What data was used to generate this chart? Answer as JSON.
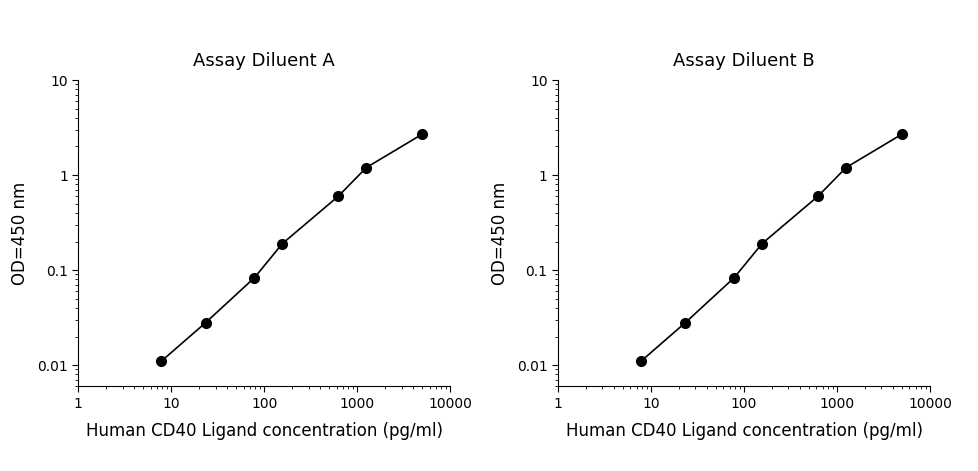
{
  "panel_A": {
    "title": "Assay Diluent A",
    "title_color": "#000000",
    "x": [
      7.8,
      23.4,
      78.1,
      156.3,
      625,
      1250,
      5000
    ],
    "y": [
      0.011,
      0.028,
      0.083,
      0.19,
      0.6,
      1.2,
      2.7
    ],
    "xlabel": "Human CD40 Ligand concentration (pg/ml)",
    "xlabel_color": "#000000",
    "ylabel": "OD=450 nm"
  },
  "panel_B": {
    "title": "Assay Diluent B",
    "title_color": "#000000",
    "x": [
      7.8,
      23.4,
      78.1,
      156.3,
      625,
      1250,
      5000
    ],
    "y": [
      0.011,
      0.028,
      0.083,
      0.19,
      0.6,
      1.2,
      2.7
    ],
    "xlabel": "Human CD40 Ligand concentration (pg/ml)",
    "xlabel_color": "#000000",
    "ylabel": "OD=450 nm"
  },
  "xlim": [
    1,
    10000
  ],
  "ylim": [
    0.006,
    10
  ],
  "xticks": [
    1,
    10,
    100,
    1000,
    10000
  ],
  "yticks": [
    0.01,
    0.1,
    1,
    10
  ],
  "marker": "o",
  "marker_color": "#000000",
  "marker_size": 7,
  "line_color": "#000000",
  "line_width": 1.2,
  "background_color": "#ffffff",
  "title_fontsize": 13,
  "label_fontsize": 12,
  "tick_fontsize": 10
}
